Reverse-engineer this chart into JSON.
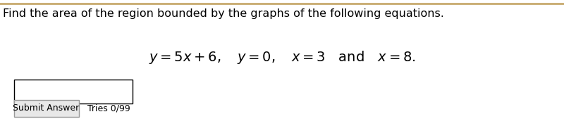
{
  "title_text": "Find the area of the region bounded by the graphs of the following equations.",
  "equation_text": "$y = 5x + 6, \\quad y = 0, \\quad x = 3 \\quad \\text{and} \\quad x = 8.$",
  "submit_button_text": "Submit Answer",
  "tries_text": "Tries 0/99",
  "background_color": "#ffffff",
  "title_fontsize": 11.5,
  "equation_fontsize": 14,
  "button_fontsize": 9,
  "top_border_color": "#c8aa6e"
}
